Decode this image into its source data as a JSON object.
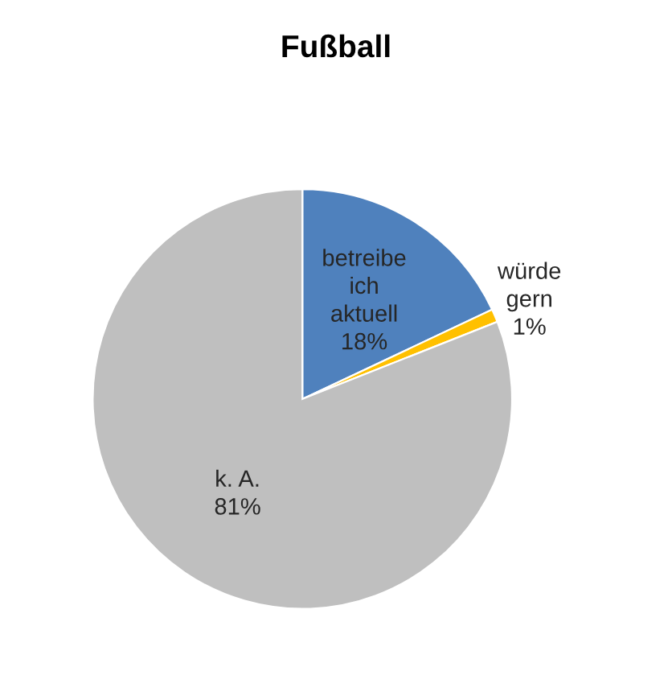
{
  "chart_data": {
    "type": "pie",
    "title": "Fußball",
    "categories": [
      "betreibe\nich\naktuell",
      "würde\ngern",
      "k. A."
    ],
    "values": [
      18,
      1,
      81
    ],
    "colors": [
      "#4f81bd",
      "#ffc000",
      "#bfbfbf"
    ],
    "value_labels": [
      "18%",
      "1%",
      "81%"
    ],
    "legend": false
  }
}
